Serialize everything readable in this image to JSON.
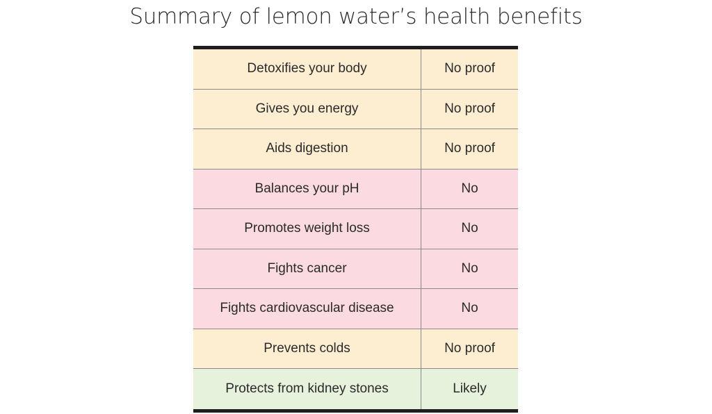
{
  "title": "Summary of lemon water’s health benefits",
  "colors": {
    "no_proof": "#fdeed1",
    "no": "#fbdbe1",
    "likely": "#e7f2dc",
    "rule": "#1e1e1e"
  },
  "rows": [
    {
      "claim": "Detoxifies your body",
      "verdict": "No proof",
      "category": "no-proof"
    },
    {
      "claim": "Gives you energy",
      "verdict": "No proof",
      "category": "no-proof"
    },
    {
      "claim": "Aids digestion",
      "verdict": "No proof",
      "category": "no-proof"
    },
    {
      "claim": "Balances your pH",
      "verdict": "No",
      "category": "no"
    },
    {
      "claim": "Promotes weight loss",
      "verdict": "No",
      "category": "no"
    },
    {
      "claim": "Fights cancer",
      "verdict": "No",
      "category": "no"
    },
    {
      "claim": "Fights cardiovascular disease",
      "verdict": "No",
      "category": "no"
    },
    {
      "claim": "Prevents colds",
      "verdict": "No proof",
      "category": "no-proof"
    },
    {
      "claim": "Protects from kidney stones",
      "verdict": "Likely",
      "category": "likely"
    }
  ]
}
